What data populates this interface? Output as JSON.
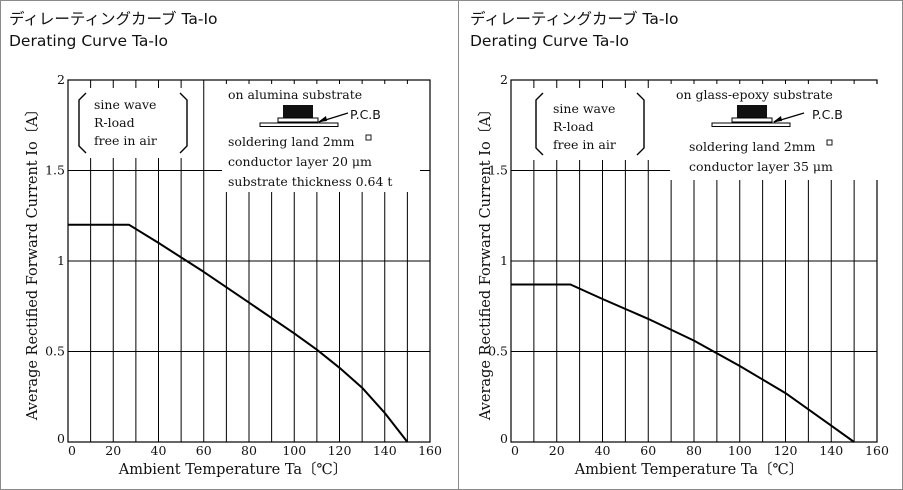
{
  "chart_data": [
    {
      "type": "line",
      "title": "ディレーティングカーブ Ta-Io",
      "subtitle": "Derating Curve Ta-Io",
      "xlabel": "Ambient Temperature Ta〔℃〕",
      "ylabel": "Average Rectified Forward Current Io〔A〕",
      "xlim": [
        0,
        160
      ],
      "ylim": [
        0,
        2
      ],
      "xticks": [
        "0",
        "20",
        "40",
        "60",
        "80",
        "100",
        "120",
        "140",
        "160"
      ],
      "yticks": [
        "0",
        "0.5",
        "1",
        "1.5",
        "2"
      ],
      "grid": true,
      "conditions": [
        "sine wave",
        "R-load",
        "free in air"
      ],
      "substrate_notes": [
        "on alumina substrate",
        "soldering land 2mm",
        "conductor layer 20 μm",
        "substrate thickness 0.64 t"
      ],
      "pcb_label": "P.C.B",
      "series": [
        {
          "x": [
            0,
            27,
            40,
            60,
            80,
            100,
            110,
            120,
            130,
            140,
            150
          ],
          "y": [
            1.2,
            1.2,
            1.1,
            0.94,
            0.77,
            0.6,
            0.51,
            0.41,
            0.3,
            0.16,
            0.0
          ]
        }
      ],
      "colors": {
        "line": "#000000",
        "grid": "#000000"
      }
    },
    {
      "type": "line",
      "title": "ディレーティングカーブ Ta-Io",
      "subtitle": "Derating Curve Ta-Io",
      "xlabel": "Ambient Temperature Ta〔℃〕",
      "ylabel": "Average Rectified Forward Current Io〔A〕",
      "xlim": [
        0,
        160
      ],
      "ylim": [
        0,
        2
      ],
      "xticks": [
        "0",
        "20",
        "40",
        "60",
        "80",
        "100",
        "120",
        "140",
        "160"
      ],
      "yticks": [
        "0",
        "0.5",
        "1",
        "1.5",
        "2"
      ],
      "grid": true,
      "conditions": [
        "sine wave",
        "R-load",
        "free in air"
      ],
      "substrate_notes": [
        "on glass-epoxy substrate",
        "soldering land 2mm",
        "conductor layer 35 μm"
      ],
      "pcb_label": "P.C.B",
      "series": [
        {
          "x": [
            0,
            26,
            40,
            60,
            80,
            100,
            120,
            140,
            150
          ],
          "y": [
            0.87,
            0.87,
            0.79,
            0.68,
            0.56,
            0.42,
            0.27,
            0.09,
            0.0
          ]
        }
      ],
      "colors": {
        "line": "#000000",
        "grid": "#000000"
      }
    }
  ]
}
